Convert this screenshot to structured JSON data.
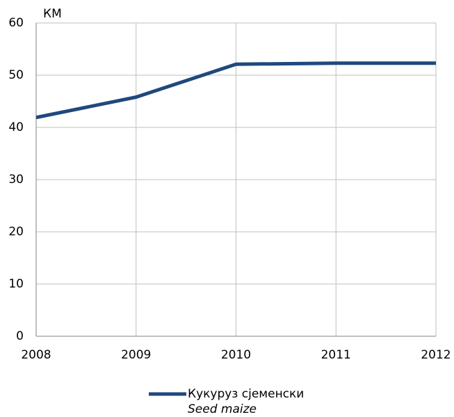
{
  "chart_data": {
    "type": "line",
    "ylabel": "КМ",
    "x": [
      2008,
      2009,
      2010,
      2011,
      2012
    ],
    "series": [
      {
        "name": "Кукуруз сјеменски",
        "name_translation": "Seed maize",
        "color": "#1f497d",
        "values": [
          41.9,
          45.8,
          52.1,
          52.3,
          52.3
        ]
      }
    ],
    "xlim": [
      2008,
      2012
    ],
    "xticks": [
      2008,
      2009,
      2010,
      2011,
      2012
    ],
    "ylim": [
      0,
      60
    ],
    "yticks": [
      0,
      10,
      20,
      30,
      40,
      50,
      60
    ],
    "grid": true,
    "legend": "bottom"
  }
}
